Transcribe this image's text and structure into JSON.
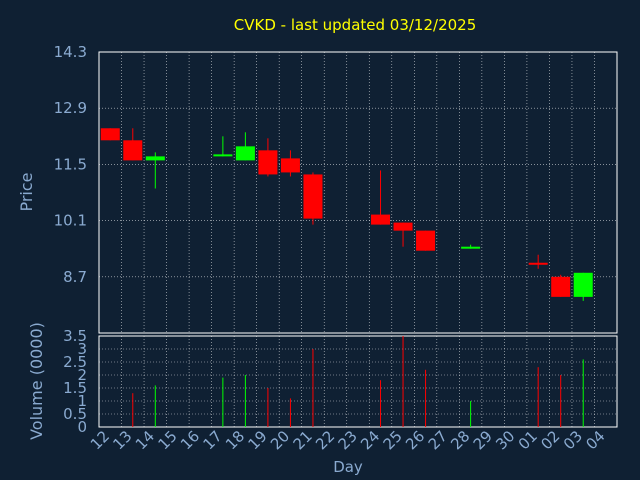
{
  "chart_data": {
    "type": "candlestick",
    "title": "CVKD - last updated 03/12/2025",
    "ylabel": "Price",
    "volume_label": "Volume (0000)",
    "xlabel": "Day",
    "price_ticks": [
      "14.3",
      "12.9",
      "11.5",
      "10.1",
      "8.7"
    ],
    "price_range": [
      7.3,
      14.3
    ],
    "volume_ticks": [
      "3.5",
      "3",
      "2.5",
      "2",
      "1.5",
      "1",
      "0.5",
      "0"
    ],
    "volume_range": [
      0,
      3.5
    ],
    "x_ticks": [
      "12",
      "13",
      "14",
      "15",
      "16",
      "17",
      "18",
      "19",
      "20",
      "21",
      "22",
      "23",
      "24",
      "25",
      "26",
      "27",
      "28",
      "29",
      "30",
      "01",
      "02",
      "03",
      "04"
    ],
    "grid": true,
    "colors": {
      "background": "#0f2033",
      "axis_text": "#8aaad0",
      "title": "#ffff00",
      "up": "#00ff00",
      "down": "#ff0000",
      "grid": "#ffffff"
    },
    "candles": [
      {
        "day": "12",
        "open": 12.4,
        "high": 12.4,
        "low": 12.1,
        "close": 12.1,
        "volume": 0
      },
      {
        "day": "13",
        "open": 12.1,
        "high": 12.4,
        "low": 11.6,
        "close": 11.6,
        "volume": 1.3
      },
      {
        "day": "14",
        "open": 11.6,
        "high": 11.8,
        "low": 10.9,
        "close": 11.7,
        "volume": 1.6
      },
      {
        "day": "17",
        "open": 11.7,
        "high": 12.2,
        "low": 11.7,
        "close": 11.75,
        "volume": 1.9
      },
      {
        "day": "18",
        "open": 11.6,
        "high": 12.3,
        "low": 11.6,
        "close": 11.95,
        "volume": 2.0
      },
      {
        "day": "19",
        "open": 11.85,
        "high": 12.15,
        "low": 11.2,
        "close": 11.25,
        "volume": 1.5
      },
      {
        "day": "20",
        "open": 11.65,
        "high": 11.85,
        "low": 11.2,
        "close": 11.3,
        "volume": 1.1
      },
      {
        "day": "21",
        "open": 11.25,
        "high": 11.3,
        "low": 10.0,
        "close": 10.15,
        "volume": 3.0
      },
      {
        "day": "24",
        "open": 10.25,
        "high": 11.35,
        "low": 10.0,
        "close": 10.0,
        "volume": 1.8
      },
      {
        "day": "25",
        "open": 10.05,
        "high": 10.05,
        "low": 9.45,
        "close": 9.85,
        "volume": 3.5
      },
      {
        "day": "26",
        "open": 9.85,
        "high": 9.85,
        "low": 9.35,
        "close": 9.35,
        "volume": 2.2
      },
      {
        "day": "28",
        "open": 9.45,
        "high": 9.5,
        "low": 9.4,
        "close": 9.45,
        "volume": 1.0
      },
      {
        "day": "01",
        "open": 9.05,
        "high": 9.25,
        "low": 8.9,
        "close": 9.0,
        "volume": 2.3
      },
      {
        "day": "02",
        "open": 8.7,
        "high": 8.75,
        "low": 8.2,
        "close": 8.2,
        "volume": 2.0
      },
      {
        "day": "03",
        "open": 8.2,
        "high": 8.8,
        "low": 8.1,
        "close": 8.8,
        "volume": 2.6
      }
    ]
  }
}
